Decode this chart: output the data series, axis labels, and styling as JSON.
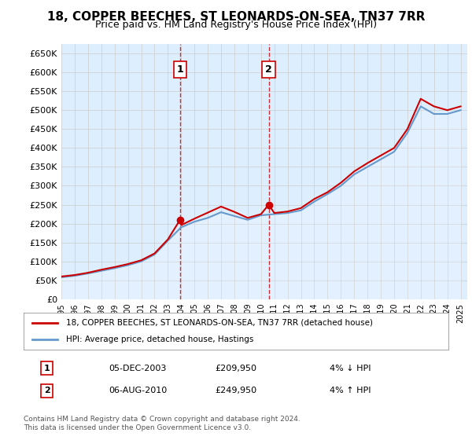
{
  "title": "18, COPPER BEECHES, ST LEONARDS-ON-SEA, TN37 7RR",
  "subtitle": "Price paid vs. HM Land Registry's House Price Index (HPI)",
  "ylabel_ticks": [
    0,
    50000,
    100000,
    150000,
    200000,
    250000,
    300000,
    350000,
    400000,
    450000,
    500000,
    550000,
    600000,
    650000
  ],
  "ylim": [
    0,
    675000
  ],
  "xlim_start": 1995.0,
  "xlim_end": 2025.5,
  "line1_label": "18, COPPER BEECHES, ST LEONARDS-ON-SEA, TN37 7RR (detached house)",
  "line2_label": "HPI: Average price, detached house, Hastings",
  "line1_color": "#cc0000",
  "line2_color": "#6699cc",
  "marker1_year": 2003.92,
  "marker1_price": 209950,
  "marker2_year": 2010.58,
  "marker2_price": 249950,
  "transaction1_label": "1",
  "transaction2_label": "2",
  "table_row1": [
    "1",
    "05-DEC-2003",
    "£209,950",
    "4% ↓ HPI"
  ],
  "table_row2": [
    "2",
    "06-AUG-2010",
    "£249,950",
    "4% ↑ HPI"
  ],
  "footer": "Contains HM Land Registry data © Crown copyright and database right 2024.\nThis data is licensed under the Open Government Licence v3.0.",
  "bg_color": "#ffffff",
  "chart_bg_color": "#ddeeff",
  "grid_color": "#cccccc",
  "shade_color": "#ddeeff",
  "hpi_data_years": [
    1995,
    1996,
    1997,
    1998,
    1999,
    2000,
    2001,
    2002,
    2003,
    2004,
    2005,
    2006,
    2007,
    2008,
    2009,
    2010,
    2011,
    2012,
    2013,
    2014,
    2015,
    2016,
    2017,
    2018,
    2019,
    2020,
    2021,
    2022,
    2023,
    2024,
    2025
  ],
  "hpi_values": [
    58000,
    62000,
    68000,
    75000,
    82000,
    90000,
    100000,
    118000,
    155000,
    190000,
    205000,
    215000,
    230000,
    220000,
    210000,
    222000,
    225000,
    228000,
    235000,
    258000,
    278000,
    300000,
    330000,
    350000,
    370000,
    390000,
    440000,
    510000,
    490000,
    490000,
    500000
  ],
  "prop_data_years": [
    1995,
    1996,
    1997,
    1998,
    1999,
    2000,
    2001,
    2002,
    2003,
    2003.92,
    2004,
    2005,
    2006,
    2007,
    2008,
    2009,
    2010,
    2010.58,
    2011,
    2012,
    2013,
    2014,
    2015,
    2016,
    2017,
    2018,
    2019,
    2020,
    2021,
    2022,
    2023,
    2024,
    2025
  ],
  "prop_values": [
    60000,
    64000,
    70000,
    78000,
    85000,
    93000,
    103000,
    121000,
    158000,
    209950,
    196000,
    213000,
    229000,
    245000,
    231000,
    215000,
    225000,
    249950,
    228000,
    232000,
    241000,
    265000,
    283000,
    308000,
    338000,
    360000,
    380000,
    400000,
    450000,
    530000,
    510000,
    500000,
    510000
  ]
}
